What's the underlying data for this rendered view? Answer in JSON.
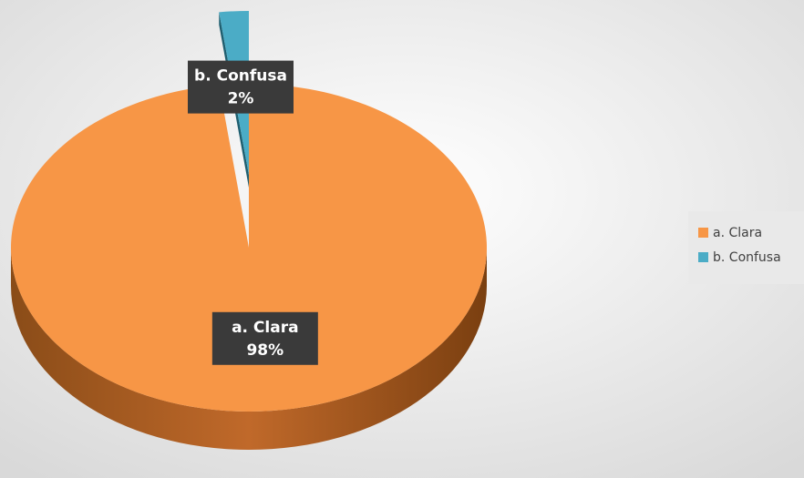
{
  "chart_data": {
    "type": "pie",
    "categories": [
      "a. Clara",
      "b. Confusa"
    ],
    "values": [
      98,
      2
    ],
    "value_labels": [
      "98%",
      "2%"
    ],
    "colors": [
      "#f79646",
      "#4bacc6"
    ],
    "legend": "right"
  }
}
